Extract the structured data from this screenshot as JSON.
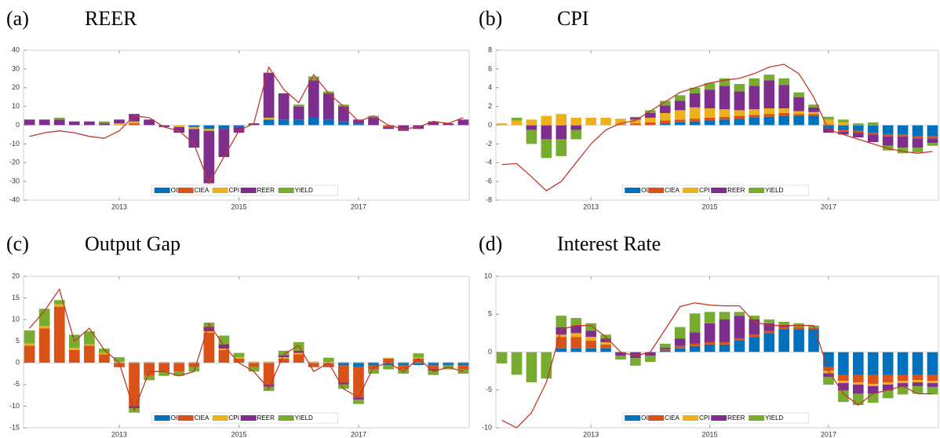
{
  "chart_data": [
    {
      "type": "stacked-bar-line",
      "label": "(a)",
      "title": "REER",
      "x": [
        2011.5,
        2011.75,
        2012,
        2012.25,
        2012.5,
        2012.75,
        2013,
        2013.25,
        2013.5,
        2013.75,
        2014,
        2014.25,
        2014.5,
        2014.75,
        2015,
        2015.25,
        2015.5,
        2015.75,
        2016,
        2016.25,
        2016.5,
        2016.75,
        2017,
        2017.25,
        2017.5,
        2017.75,
        2018,
        2018.25,
        2018.5,
        2018.75
      ],
      "xlim": [
        2011.4,
        2018.85
      ],
      "xticks": [
        2013,
        2015,
        2017
      ],
      "ylim": [
        -40,
        40
      ],
      "yticks": [
        -40,
        -30,
        -20,
        -10,
        0,
        10,
        20,
        30,
        40
      ],
      "series": [
        {
          "name": "OIL",
          "color": "#0072bd",
          "values": [
            0,
            0,
            0,
            0,
            0,
            0,
            0,
            0,
            0,
            0,
            0,
            -1,
            -2,
            -2,
            -1,
            0,
            3,
            3,
            3,
            4,
            3,
            2,
            1,
            0,
            0,
            0,
            0,
            0,
            0,
            0
          ]
        },
        {
          "name": "CIEA",
          "color": "#d95319",
          "values": [
            0,
            0,
            0,
            0,
            0,
            0,
            0,
            1,
            0,
            0,
            0,
            0,
            0,
            0,
            0,
            0,
            0,
            0,
            0,
            0,
            0,
            0,
            0,
            0,
            -1,
            0,
            0,
            0,
            0,
            0
          ]
        },
        {
          "name": "CPI",
          "color": "#edb120",
          "values": [
            0,
            0,
            0,
            0,
            0,
            0,
            1,
            1,
            0,
            0,
            -1,
            -1,
            -1,
            0,
            0,
            0,
            1,
            0,
            0,
            0,
            0,
            0,
            0,
            0,
            0,
            0,
            0,
            0,
            0,
            0
          ]
        },
        {
          "name": "REER",
          "color": "#7e2f8e",
          "values": [
            3,
            3,
            3,
            2,
            2,
            1,
            2,
            4,
            3,
            -1,
            -3,
            -10,
            -28,
            -15,
            -3,
            1,
            24,
            14,
            7,
            20,
            14,
            8,
            2,
            4,
            -1,
            -3,
            -2,
            2,
            1,
            3
          ]
        },
        {
          "name": "YIELD",
          "color": "#77ac30",
          "values": [
            0,
            0,
            1,
            0,
            0,
            1,
            0,
            0,
            0,
            0,
            0,
            0,
            0,
            0,
            0,
            0,
            0,
            0,
            1,
            2,
            1,
            1,
            0,
            1,
            0,
            0,
            0,
            0,
            0,
            0
          ]
        }
      ],
      "line": [
        -6,
        -4,
        -3,
        -4,
        -6,
        -7,
        -3,
        5,
        4,
        -1,
        -3,
        -10,
        -31,
        -17,
        -3,
        1,
        31,
        19,
        12,
        27,
        17,
        10,
        2,
        5,
        0,
        -2,
        -1,
        2,
        1,
        4
      ],
      "line_color": "#c0392b"
    },
    {
      "type": "stacked-bar-line",
      "label": "(b)",
      "title": "CPI",
      "x": [
        2011.5,
        2011.75,
        2012,
        2012.25,
        2012.5,
        2012.75,
        2013,
        2013.25,
        2013.5,
        2013.75,
        2014,
        2014.25,
        2014.5,
        2014.75,
        2015,
        2015.25,
        2015.5,
        2015.75,
        2016,
        2016.25,
        2016.5,
        2016.75,
        2017,
        2017.25,
        2017.5,
        2017.75,
        2018,
        2018.25,
        2018.5,
        2018.75
      ],
      "xlim": [
        2011.4,
        2018.85
      ],
      "xticks": [
        2013,
        2015,
        2017
      ],
      "ylim": [
        -8,
        8
      ],
      "yticks": [
        -8,
        -6,
        -4,
        -2,
        0,
        2,
        4,
        6,
        8
      ],
      "series": [
        {
          "name": "OIL",
          "color": "#0072bd",
          "values": [
            0,
            0,
            0,
            0,
            0,
            0,
            0,
            0,
            0,
            0,
            0,
            0.2,
            0.3,
            0.4,
            0.5,
            0.6,
            0.7,
            0.8,
            0.9,
            1,
            1,
            1,
            -0.3,
            -0.5,
            -0.6,
            -0.8,
            -1,
            -1,
            -1.2,
            -1.2
          ]
        },
        {
          "name": "CIEA",
          "color": "#d95319",
          "values": [
            0,
            0,
            0,
            0,
            0,
            0,
            0,
            0,
            0.1,
            0.2,
            0.3,
            0.3,
            0.3,
            0.3,
            0.3,
            0.3,
            0.3,
            0.3,
            0.3,
            0.3,
            0.2,
            0.2,
            0.1,
            -0.2,
            -0.2,
            -0.2,
            -0.2,
            -0.2,
            -0.2,
            -0.2
          ]
        },
        {
          "name": "CPI",
          "color": "#edb120",
          "values": [
            0.2,
            0.5,
            0.6,
            1,
            1.2,
            0.8,
            0.8,
            0.8,
            0.6,
            0.4,
            0.5,
            0.8,
            1,
            1.2,
            1,
            0.8,
            0.6,
            0.6,
            0.6,
            0.5,
            0.3,
            0.2,
            0.5,
            0.3,
            0,
            0,
            0,
            0,
            0,
            0
          ]
        },
        {
          "name": "REER",
          "color": "#7e2f8e",
          "values": [
            0,
            0,
            -0.5,
            -1.5,
            -1.5,
            -0.5,
            0,
            0,
            0,
            0.2,
            0.5,
            0.8,
            1,
            1.5,
            2,
            2.5,
            2,
            2.5,
            3,
            2.5,
            1.5,
            0.5,
            -0.5,
            -0.3,
            -0.5,
            -0.8,
            -1,
            -1.2,
            -1,
            -0.5
          ]
        },
        {
          "name": "YIELD",
          "color": "#77ac30",
          "values": [
            0,
            0.3,
            -1.5,
            -2,
            -1.8,
            -1,
            0,
            0,
            0,
            0.1,
            0.3,
            0.5,
            0.6,
            0.6,
            0.7,
            0.8,
            0.8,
            0.8,
            0.6,
            0.7,
            0.5,
            0.3,
            0.3,
            0.3,
            0.2,
            0.3,
            -0.5,
            -0.6,
            -0.5,
            -0.3
          ]
        }
      ],
      "line": [
        -4.2,
        -4.1,
        -5.5,
        -7,
        -6,
        -4,
        -2,
        -0.5,
        0.2,
        0.5,
        1.5,
        2.5,
        3.5,
        4,
        4.5,
        4.8,
        5,
        5.5,
        6.2,
        6.5,
        5.5,
        3,
        -0.5,
        -1,
        -1.5,
        -2,
        -2.5,
        -2.8,
        -3,
        -2.8
      ],
      "line_color": "#c0392b"
    },
    {
      "type": "stacked-bar-line",
      "label": "(c)",
      "title": "Output Gap",
      "x": [
        2011.5,
        2011.75,
        2012,
        2012.25,
        2012.5,
        2012.75,
        2013,
        2013.25,
        2013.5,
        2013.75,
        2014,
        2014.25,
        2014.5,
        2014.75,
        2015,
        2015.25,
        2015.5,
        2015.75,
        2016,
        2016.25,
        2016.5,
        2016.75,
        2017,
        2017.25,
        2017.5,
        2017.75,
        2018,
        2018.25,
        2018.5,
        2018.75
      ],
      "xlim": [
        2011.4,
        2018.85
      ],
      "xticks": [
        2013,
        2015,
        2017
      ],
      "ylim": [
        -15,
        20
      ],
      "yticks": [
        -15,
        -10,
        -5,
        0,
        5,
        10,
        15,
        20
      ],
      "series": [
        {
          "name": "OIL",
          "color": "#0072bd",
          "values": [
            0,
            0,
            0,
            0,
            0,
            0,
            0,
            0,
            0,
            0,
            0,
            0,
            0,
            0,
            0,
            0,
            0,
            0,
            0,
            0,
            0,
            -0.5,
            -1,
            -0.5,
            -0.5,
            -0.5,
            -0.5,
            -0.5,
            -0.5,
            -0.5
          ]
        },
        {
          "name": "CIEA",
          "color": "#d95319",
          "values": [
            4,
            8,
            13,
            3,
            4,
            2,
            -1,
            -10,
            -3,
            -2,
            -2,
            -1,
            7,
            3,
            1,
            -1,
            -5,
            1,
            2,
            -1,
            -1,
            -4,
            -7,
            -1,
            1,
            -1,
            1,
            -1,
            0,
            -1
          ]
        },
        {
          "name": "CPI",
          "color": "#edb120",
          "values": [
            0.5,
            0.5,
            0.5,
            0.5,
            0.3,
            0.3,
            0.3,
            0.2,
            0.2,
            0.2,
            0.2,
            0.2,
            0.3,
            0.3,
            0.3,
            0.3,
            0.3,
            0.3,
            0.3,
            0.3,
            0.2,
            0.2,
            0.2,
            0.2,
            0.2,
            0.2,
            0.2,
            0.2,
            0.2,
            0.2
          ]
        },
        {
          "name": "REER",
          "color": "#7e2f8e",
          "values": [
            0,
            0,
            0,
            0,
            0,
            0,
            0,
            -0.5,
            0,
            0,
            0,
            0,
            1,
            1,
            0,
            0,
            -0.5,
            0.5,
            0.5,
            0,
            0,
            -0.5,
            -0.5,
            0,
            0,
            0,
            0,
            -0.3,
            0,
            0
          ]
        },
        {
          "name": "YIELD",
          "color": "#77ac30",
          "values": [
            3,
            4,
            1,
            3,
            3,
            1,
            1,
            -1,
            -1,
            -1,
            -1,
            -1,
            1,
            2,
            1,
            -1,
            -1,
            1,
            2,
            0,
            1,
            -1,
            -1,
            -1,
            -1,
            -1,
            1,
            -1,
            -1,
            -1
          ]
        }
      ],
      "line": [
        8,
        12,
        17,
        5,
        8,
        3,
        0,
        -11,
        -2,
        -2,
        -3,
        -2,
        9,
        4,
        0,
        -2,
        -6,
        2,
        4,
        -2,
        0,
        -6,
        -8,
        -1,
        0,
        -2,
        1,
        -2,
        -1,
        -2
      ],
      "line_color": "#c0392b"
    },
    {
      "type": "stacked-bar-line",
      "label": "(d)",
      "title": "Interest Rate",
      "x": [
        2011.5,
        2011.75,
        2012,
        2012.25,
        2012.5,
        2012.75,
        2013,
        2013.25,
        2013.5,
        2013.75,
        2014,
        2014.25,
        2014.5,
        2014.75,
        2015,
        2015.25,
        2015.5,
        2015.75,
        2016,
        2016.25,
        2016.5,
        2016.75,
        2017,
        2017.25,
        2017.5,
        2017.75,
        2018,
        2018.25,
        2018.5,
        2018.75
      ],
      "xlim": [
        2011.4,
        2018.85
      ],
      "xticks": [
        2013,
        2015,
        2017
      ],
      "ylim": [
        -10,
        10
      ],
      "yticks": [
        -10,
        -5,
        0,
        5,
        10
      ],
      "series": [
        {
          "name": "OIL",
          "color": "#0072bd",
          "values": [
            0,
            0,
            0,
            0,
            0.5,
            0.5,
            0.5,
            0.5,
            0,
            0,
            0,
            0.2,
            0.5,
            0.8,
            1,
            1,
            1.5,
            2,
            2.5,
            3,
            3,
            3,
            -2,
            -3,
            -3,
            -3,
            -3,
            -3,
            -3,
            -3
          ]
        },
        {
          "name": "CIEA",
          "color": "#d95319",
          "values": [
            0,
            0,
            0,
            0,
            1.5,
            1.5,
            1,
            0.5,
            0,
            0,
            0,
            0.2,
            0.3,
            0.3,
            0.3,
            0.3,
            0.3,
            0.3,
            0.3,
            0.3,
            0.3,
            0.2,
            -0.5,
            -0.8,
            -1,
            -1.2,
            -1,
            -0.8,
            -0.7,
            -0.8
          ]
        },
        {
          "name": "CPI",
          "color": "#edb120",
          "values": [
            0,
            0,
            0,
            0,
            0.3,
            0.5,
            0.5,
            0.3,
            0,
            0,
            0,
            0,
            0,
            0,
            0,
            0,
            0,
            0,
            0,
            0,
            0,
            0,
            -0.3,
            -0.3,
            -0.3,
            -0.3,
            -0.3,
            -0.3,
            -0.3,
            -0.3
          ]
        },
        {
          "name": "REER",
          "color": "#7e2f8e",
          "values": [
            0,
            0,
            0,
            0,
            1,
            1,
            0.8,
            0.5,
            -0.5,
            -0.8,
            -0.5,
            0.2,
            1,
            1.5,
            2.5,
            3,
            3,
            2,
            1,
            0.2,
            0,
            0,
            -0.5,
            -1,
            -1.2,
            -1,
            -0.8,
            -0.5,
            -0.5,
            -0.5
          ]
        },
        {
          "name": "YIELD",
          "color": "#77ac30",
          "values": [
            -1.5,
            -3,
            -4,
            -3.5,
            1.5,
            1,
            1,
            0.5,
            -0.5,
            -1,
            -0.8,
            0.5,
            1.5,
            2.5,
            1.5,
            1,
            0.5,
            0.5,
            0.5,
            0.5,
            0.5,
            0.3,
            -1,
            -1.5,
            -1.5,
            -1.2,
            -1,
            -1,
            -1,
            -1
          ]
        }
      ],
      "line": [
        -9,
        -10,
        -8,
        -4,
        3,
        3.5,
        3.5,
        2,
        0,
        -0.5,
        0,
        3,
        6,
        6.5,
        6.2,
        6.1,
        6.1,
        4,
        3.5,
        3.5,
        3.5,
        3.5,
        -2.5,
        -5.5,
        -7,
        -5.5,
        -5,
        -4.5,
        -5.5,
        -5.5
      ],
      "line_color": "#c0392b"
    }
  ]
}
